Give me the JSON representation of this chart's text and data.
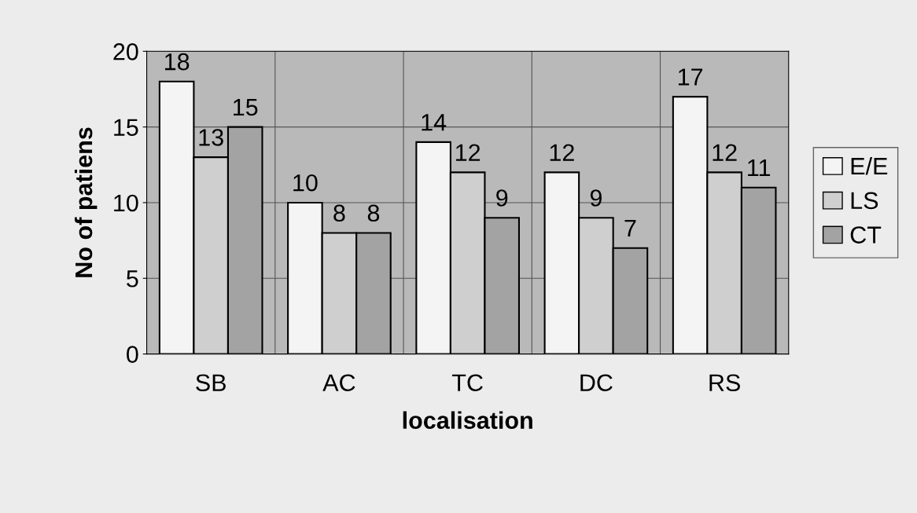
{
  "chart_data": {
    "type": "bar",
    "xlabel": "localisation",
    "ylabel": "No of patiens",
    "categories": [
      "SB",
      "AC",
      "TC",
      "DC",
      "RS"
    ],
    "series": [
      {
        "name": "E/E",
        "color": "#f4f4f4",
        "values": [
          18,
          10,
          14,
          12,
          17
        ]
      },
      {
        "name": "LS",
        "color": "#cfcfcf",
        "values": [
          13,
          8,
          12,
          9,
          12
        ]
      },
      {
        "name": "CT",
        "color": "#a3a3a3",
        "values": [
          15,
          8,
          9,
          7,
          11
        ]
      }
    ],
    "ylim": [
      0,
      20
    ],
    "yticks": [
      0,
      5,
      10,
      15,
      20
    ],
    "grid": true,
    "legend": "right",
    "data_labels": true
  }
}
